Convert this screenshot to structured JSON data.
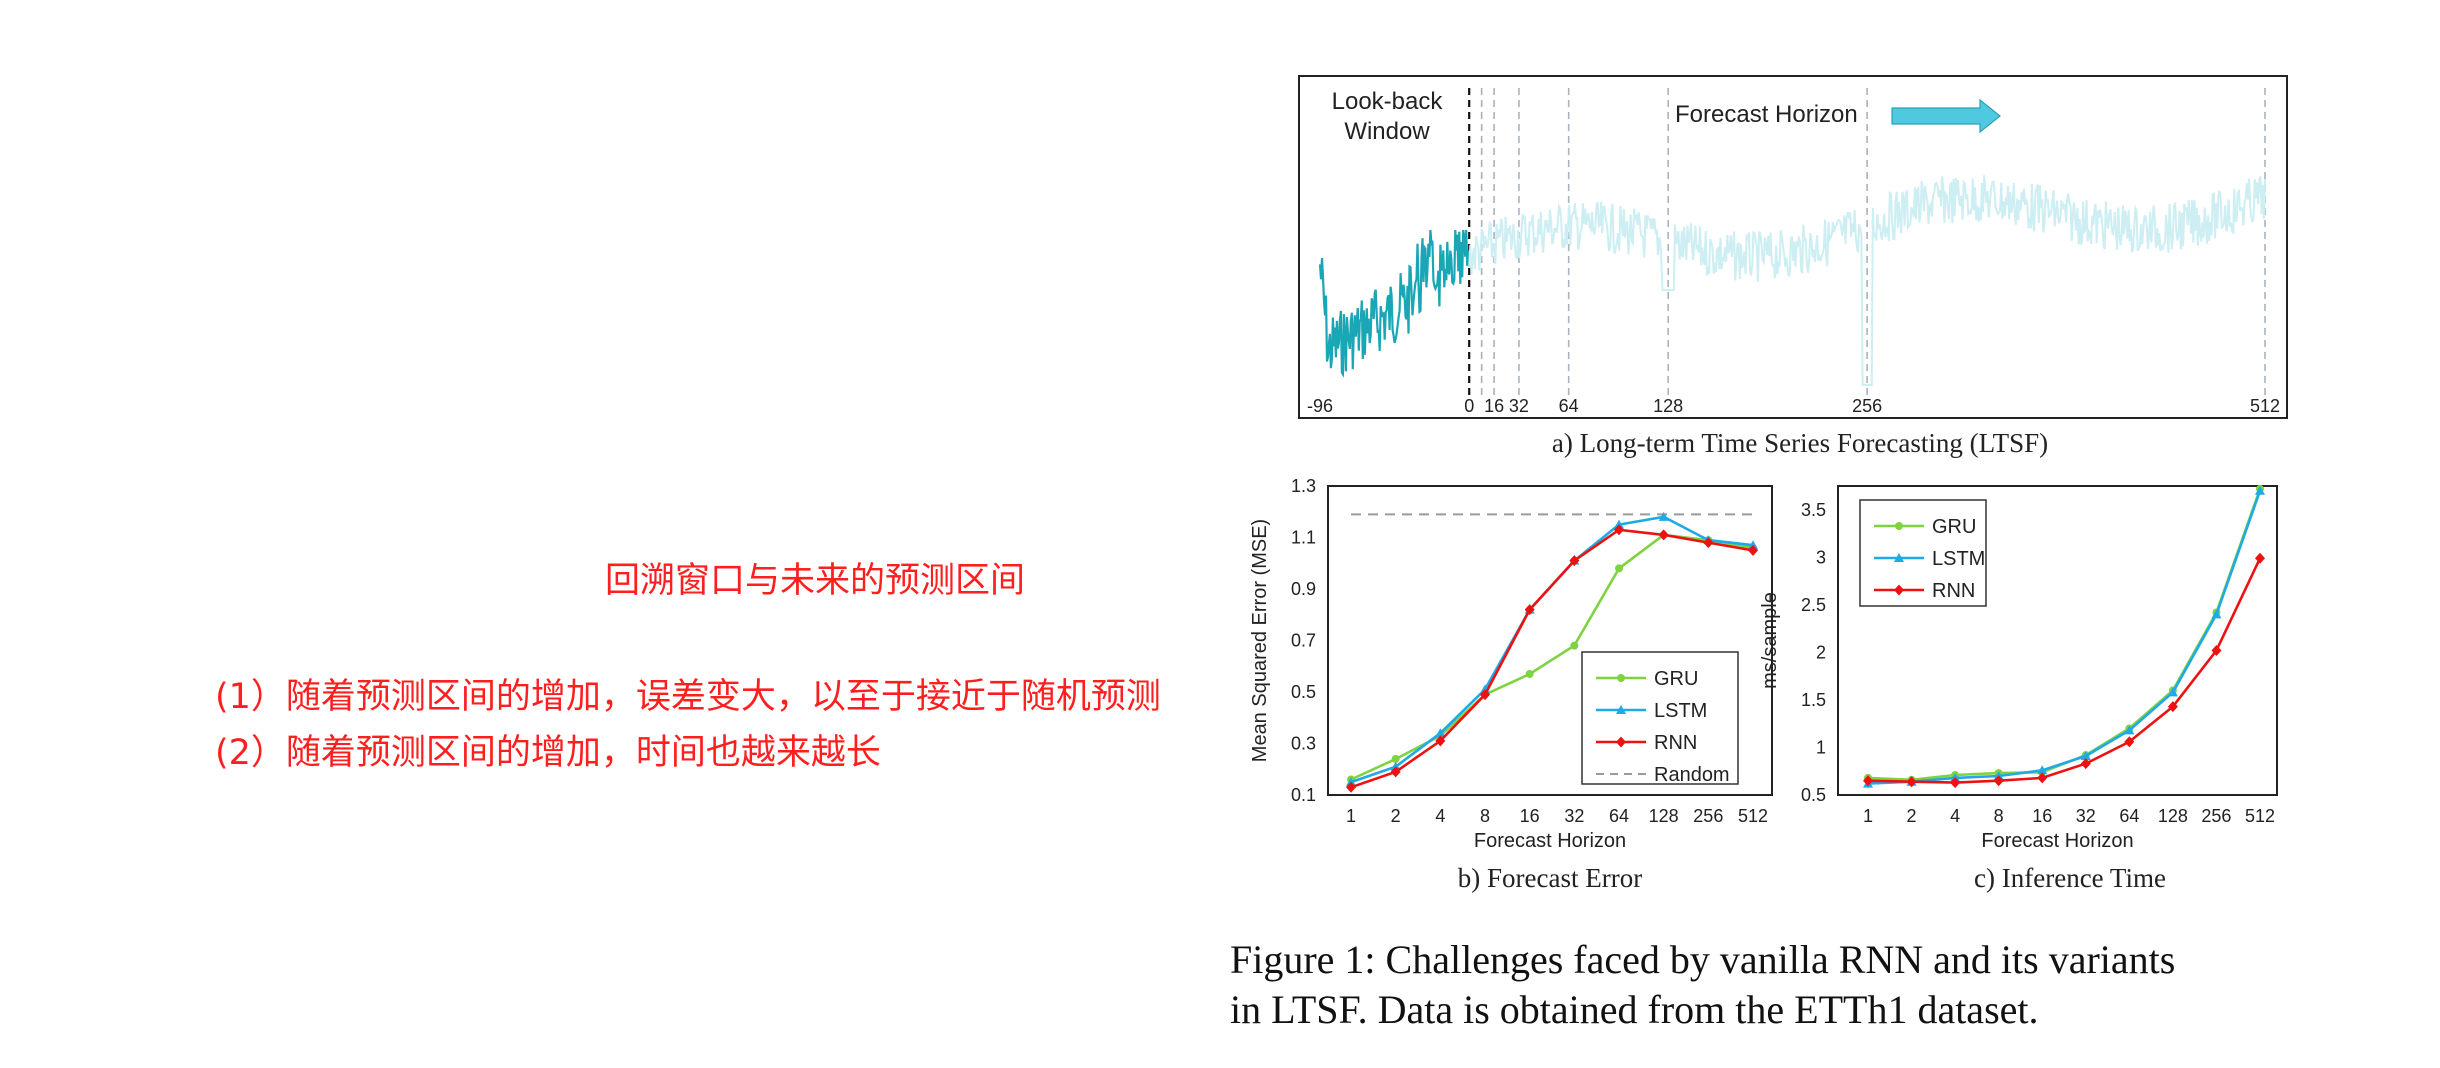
{
  "annotations": {
    "title": "回溯窗口与未来的预测区间",
    "line1": "(1）随着预测区间的增加，误差变大，以至于接近于随机预测",
    "line2": "(2）随着预测区间的增加，时间也越来越长"
  },
  "captions": {
    "a": "a) Long-term Time Series Forecasting (LTSF)",
    "b": "b) Forecast Error",
    "c": "c) Inference Time",
    "figure_line1": "Figure 1: Challenges faced by vanilla RNN and its variants",
    "figure_line2": "in LTSF. Data is obtained from the ETTh1 dataset."
  },
  "colors": {
    "gru": "#7ed340",
    "lstm": "#1fa9e6",
    "rnn": "#ee1111",
    "random": "#9a9a9a",
    "series": "#1aa7b5",
    "arrow": "#4ec9df"
  },
  "chart_data": [
    {
      "type": "line",
      "labels": {
        "lookback": "Look-back\nWindow",
        "horizon": "Forecast Horizon"
      },
      "x_ticks": [
        -96,
        0,
        16,
        32,
        64,
        128,
        256,
        512
      ],
      "tick_labels": [
        "-96",
        "0",
        "16",
        "32",
        "64",
        "128",
        "256",
        "512"
      ],
      "markers": [
        0,
        8,
        16,
        32,
        64,
        128,
        256,
        512
      ],
      "xlim": [
        -96,
        512
      ]
    },
    {
      "type": "line",
      "categories": [
        "1",
        "2",
        "4",
        "8",
        "16",
        "32",
        "64",
        "128",
        "256",
        "512"
      ],
      "xlabel": "Forecast Horizon",
      "ylabel": "Mean Squared Error (MSE)",
      "ylim": [
        0.1,
        1.3
      ],
      "yticks": [
        "0.1",
        "0.3",
        "0.5",
        "0.7",
        "0.9",
        "1.1",
        "1.3"
      ],
      "legend": "bottom-right",
      "random_level": 1.19,
      "random_name": "Random",
      "series": [
        {
          "name": "GRU",
          "values": [
            0.16,
            0.24,
            0.33,
            0.49,
            0.57,
            0.68,
            0.98,
            1.11,
            1.09,
            1.06
          ]
        },
        {
          "name": "LSTM",
          "values": [
            0.15,
            0.21,
            0.34,
            0.51,
            0.82,
            1.01,
            1.15,
            1.18,
            1.09,
            1.07
          ]
        },
        {
          "name": "RNN",
          "values": [
            0.13,
            0.19,
            0.31,
            0.49,
            0.82,
            1.01,
            1.13,
            1.11,
            1.08,
            1.05
          ]
        }
      ]
    },
    {
      "type": "line",
      "categories": [
        "1",
        "2",
        "4",
        "8",
        "16",
        "32",
        "64",
        "128",
        "256",
        "512"
      ],
      "xlabel": "Forecast Horizon",
      "ylabel": "ms/sample",
      "ylim": [
        0.5,
        3.75
      ],
      "yticks": [
        "0.5",
        "1",
        "1.5",
        "2",
        "2.5",
        "3",
        "3.5"
      ],
      "legend": "top-left",
      "series": [
        {
          "name": "GRU",
          "values": [
            0.68,
            0.66,
            0.71,
            0.73,
            0.74,
            0.92,
            1.2,
            1.6,
            2.42,
            3.72
          ]
        },
        {
          "name": "LSTM",
          "values": [
            0.62,
            0.64,
            0.68,
            0.7,
            0.76,
            0.91,
            1.18,
            1.58,
            2.4,
            3.7
          ]
        },
        {
          "name": "RNN",
          "values": [
            0.65,
            0.64,
            0.63,
            0.65,
            0.68,
            0.83,
            1.06,
            1.43,
            2.02,
            2.99
          ]
        }
      ]
    }
  ]
}
